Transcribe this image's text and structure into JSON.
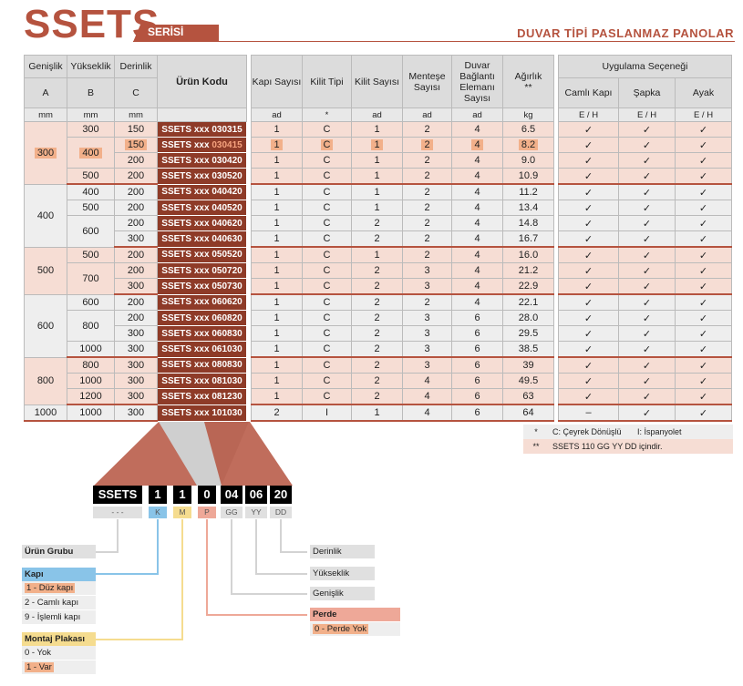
{
  "header": {
    "title": "SSETS",
    "series_tab": "SERİSİ",
    "subtitle": "DUVAR TİPİ PASLANMAZ PANOLAR"
  },
  "table": {
    "headers": {
      "width": "Genişlik",
      "height": "Yükseklik",
      "depth": "Derinlik",
      "product_code": "Ürün Kodu",
      "door_count": "Kapı Sayısı",
      "lock_type": "Kilit Tipi",
      "lock_count": "Kilit Sayısı",
      "hinge_count": "Menteşe Sayısı",
      "wall_bracket": "Duvar Bağlantı Elemanı Sayısı",
      "weight": "Ağırlık",
      "weight_mark": "**",
      "options": "Uygulama Seçeneği",
      "opt_glass": "Camlı Kapı",
      "opt_hat": "Şapka",
      "opt_foot": "Ayak",
      "col_a": "A",
      "col_b": "B",
      "col_c": "C"
    },
    "units": [
      "mm",
      "mm",
      "mm",
      "",
      "ad",
      "*",
      "ad",
      "ad",
      "ad",
      "kg",
      "E / H",
      "E / H",
      "E / H"
    ],
    "rows": [
      {
        "a": "300",
        "b": "300",
        "c": "150",
        "code": "SSETS xxx 030315",
        "door": "1",
        "lock": "C",
        "lc": "1",
        "hinge": "2",
        "wall": "4",
        "kg": "6.5",
        "g": "✓",
        "s": "✓",
        "f": "✓"
      },
      {
        "a": "",
        "b": "400",
        "c": "150",
        "code_prefix": "SSETS xxx ",
        "code_hl": "030415",
        "door": "1",
        "lock": "C",
        "lc": "1",
        "hinge": "2",
        "wall": "4",
        "kg": "8.2",
        "g": "✓",
        "s": "✓",
        "f": "✓"
      },
      {
        "a": "",
        "b": "",
        "c": "200",
        "code": "SSETS xxx 030420",
        "door": "1",
        "lock": "C",
        "lc": "1",
        "hinge": "2",
        "wall": "4",
        "kg": "9.0",
        "g": "✓",
        "s": "✓",
        "f": "✓"
      },
      {
        "a": "",
        "b": "500",
        "c": "200",
        "code": "SSETS xxx 030520",
        "door": "1",
        "lock": "C",
        "lc": "1",
        "hinge": "2",
        "wall": "4",
        "kg": "10.9",
        "g": "✓",
        "s": "✓",
        "f": "✓"
      },
      {
        "a": "400",
        "b": "400",
        "c": "200",
        "code": "SSETS xxx 040420",
        "door": "1",
        "lock": "C",
        "lc": "1",
        "hinge": "2",
        "wall": "4",
        "kg": "11.2",
        "g": "✓",
        "s": "✓",
        "f": "✓"
      },
      {
        "a": "",
        "b": "500",
        "c": "200",
        "code": "SSETS xxx 040520",
        "door": "1",
        "lock": "C",
        "lc": "1",
        "hinge": "2",
        "wall": "4",
        "kg": "13.4",
        "g": "✓",
        "s": "✓",
        "f": "✓"
      },
      {
        "a": "",
        "b": "600",
        "c": "200",
        "code": "SSETS xxx 040620",
        "door": "1",
        "lock": "C",
        "lc": "2",
        "hinge": "2",
        "wall": "4",
        "kg": "14.8",
        "g": "✓",
        "s": "✓",
        "f": "✓"
      },
      {
        "a": "",
        "b": "",
        "c": "300",
        "code": "SSETS xxx 040630",
        "door": "1",
        "lock": "C",
        "lc": "2",
        "hinge": "2",
        "wall": "4",
        "kg": "16.7",
        "g": "✓",
        "s": "✓",
        "f": "✓"
      },
      {
        "a": "500",
        "b": "500",
        "c": "200",
        "code": "SSETS xxx 050520",
        "door": "1",
        "lock": "C",
        "lc": "1",
        "hinge": "2",
        "wall": "4",
        "kg": "16.0",
        "g": "✓",
        "s": "✓",
        "f": "✓"
      },
      {
        "a": "",
        "b": "700",
        "c": "200",
        "code": "SSETS xxx 050720",
        "door": "1",
        "lock": "C",
        "lc": "2",
        "hinge": "3",
        "wall": "4",
        "kg": "21.2",
        "g": "✓",
        "s": "✓",
        "f": "✓"
      },
      {
        "a": "",
        "b": "",
        "c": "300",
        "code": "SSETS xxx 050730",
        "door": "1",
        "lock": "C",
        "lc": "2",
        "hinge": "3",
        "wall": "4",
        "kg": "22.9",
        "g": "✓",
        "s": "✓",
        "f": "✓"
      },
      {
        "a": "600",
        "b": "600",
        "c": "200",
        "code": "SSETS xxx 060620",
        "door": "1",
        "lock": "C",
        "lc": "2",
        "hinge": "2",
        "wall": "4",
        "kg": "22.1",
        "g": "✓",
        "s": "✓",
        "f": "✓"
      },
      {
        "a": "",
        "b": "800",
        "c": "200",
        "code": "SSETS xxx 060820",
        "door": "1",
        "lock": "C",
        "lc": "2",
        "hinge": "3",
        "wall": "6",
        "kg": "28.0",
        "g": "✓",
        "s": "✓",
        "f": "✓"
      },
      {
        "a": "",
        "b": "",
        "c": "300",
        "code": "SSETS xxx 060830",
        "door": "1",
        "lock": "C",
        "lc": "2",
        "hinge": "3",
        "wall": "6",
        "kg": "29.5",
        "g": "✓",
        "s": "✓",
        "f": "✓"
      },
      {
        "a": "",
        "b": "1000",
        "c": "300",
        "code": "SSETS xxx 061030",
        "door": "1",
        "lock": "C",
        "lc": "2",
        "hinge": "3",
        "wall": "6",
        "kg": "38.5",
        "g": "✓",
        "s": "✓",
        "f": "✓"
      },
      {
        "a": "800",
        "b": "800",
        "c": "300",
        "code": "SSETS xxx 080830",
        "door": "1",
        "lock": "C",
        "lc": "2",
        "hinge": "3",
        "wall": "6",
        "kg": "39",
        "g": "✓",
        "s": "✓",
        "f": "✓"
      },
      {
        "a": "",
        "b": "1000",
        "c": "300",
        "code": "SSETS xxx 081030",
        "door": "1",
        "lock": "C",
        "lc": "2",
        "hinge": "4",
        "wall": "6",
        "kg": "49.5",
        "g": "✓",
        "s": "✓",
        "f": "✓"
      },
      {
        "a": "",
        "b": "1200",
        "c": "300",
        "code": "SSETS xxx 081230",
        "door": "1",
        "lock": "C",
        "lc": "2",
        "hinge": "4",
        "wall": "6",
        "kg": "63",
        "g": "✓",
        "s": "✓",
        "f": "✓"
      },
      {
        "a": "1000",
        "b": "1000",
        "c": "300",
        "code": "SSETS xxx 101030",
        "door": "2",
        "lock": "I",
        "lc": "1",
        "hinge": "4",
        "wall": "6",
        "kg": "64",
        "g": "–",
        "s": "✓",
        "f": "✓"
      }
    ]
  },
  "notes": [
    {
      "mark": "*",
      "text": "C: Çeyrek Dönüşlü       I: İspanyolet"
    },
    {
      "mark": "**",
      "text": "SSETS 110 GG YY DD içindir."
    }
  ],
  "code_diagram": {
    "parts": [
      "SSETS",
      "1",
      "1",
      "0",
      "04",
      "06",
      "20"
    ],
    "labels": [
      "- - -",
      "K",
      "M",
      "P",
      "GG",
      "YY",
      "DD"
    ],
    "legend": {
      "product_group": "Ürün Grubu",
      "door_title": "Kapı",
      "door_items": [
        "1 - Düz kapı",
        "2 - Camlı kapı",
        "9 - İşlemli kapı"
      ],
      "plate_title": "Montaj Plakası",
      "plate_items": [
        "0 - Yok",
        "1 - Var"
      ],
      "depth": "Derinlik",
      "height": "Yükseklik",
      "width": "Genişlik",
      "curtain_title": "Perde",
      "curtain_items": [
        "0 - Perde Yok"
      ]
    },
    "colors": {
      "accent": "#b5533f",
      "door": "#89c4e8",
      "plate": "#f5dc8f",
      "curtain": "#eea898",
      "gray": "#d3d3d3"
    }
  }
}
